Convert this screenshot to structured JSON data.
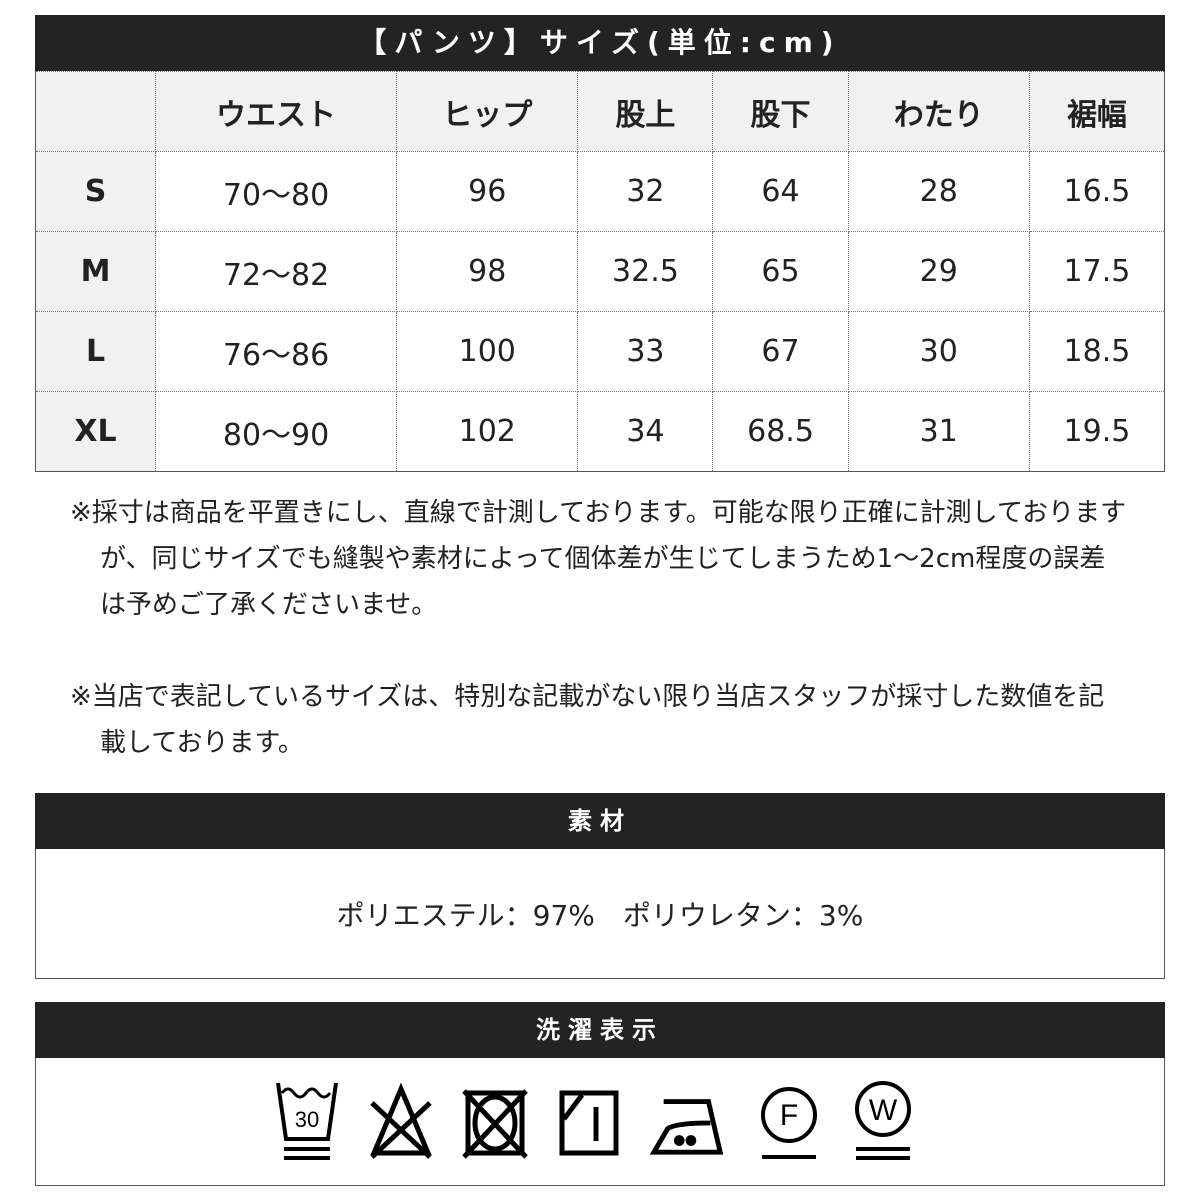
{
  "size_table": {
    "title": "【パンツ】サイズ(単位:cm)",
    "columns": [
      "",
      "ウエスト",
      "ヒップ",
      "股上",
      "股下",
      "わたり",
      "裾幅"
    ],
    "rows": [
      [
        "S",
        "70〜80",
        "96",
        "32",
        "64",
        "28",
        "16.5"
      ],
      [
        "M",
        "72〜82",
        "98",
        "32.5",
        "65",
        "29",
        "17.5"
      ],
      [
        "L",
        "76〜86",
        "100",
        "33",
        "67",
        "30",
        "18.5"
      ],
      [
        "XL",
        "80〜90",
        "102",
        "34",
        "68.5",
        "31",
        "19.5"
      ]
    ]
  },
  "notes": [
    "※採寸は商品を平置きにし、直線で計測しております。可能な限り正確に計測しておりますが、同じサイズでも縫製や素材によって個体差が生じてしまうため1〜2cm程度の誤差は予めご了承くださいませ。",
    "※当店で表記しているサイズは、特別な記載がない限り当店スタッフが採寸した数値を記載しております。"
  ],
  "material": {
    "title": "素材",
    "text": "ポリエステル：97%　ポリウレタン：3%"
  },
  "care": {
    "title": "洗濯表示",
    "icons": [
      "wash-30-very-gentle-icon",
      "no-bleach-icon",
      "no-tumble-dry-icon",
      "line-dry-shade-icon",
      "iron-medium-icon",
      "dry-clean-f-gentle-icon",
      "wet-clean-very-gentle-icon"
    ],
    "wash_temp": "30",
    "dry_clean_letter": "F",
    "wet_clean_letter": "W"
  }
}
